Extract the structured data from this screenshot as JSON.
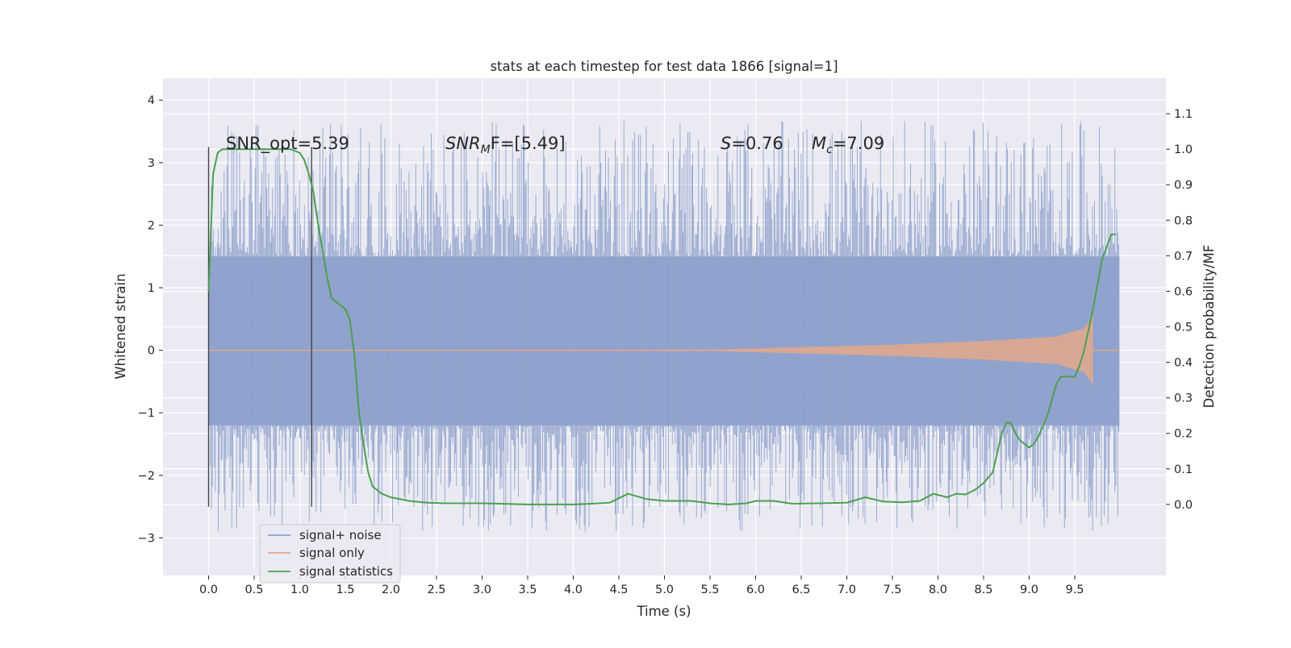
{
  "chart_data": {
    "type": "line",
    "title": "stats at each timestep for test data 1866 [signal=1]",
    "xlabel": "Time (s)",
    "ylabel_left": "Whitened strain",
    "ylabel_right": "Detection probability/MF",
    "xlim": [
      -0.5,
      10.5
    ],
    "ylim_left": [
      -3.6,
      4.35
    ],
    "ylim_right": [
      -0.2,
      1.2
    ],
    "xticks": [
      "0.0",
      "0.5",
      "1.0",
      "1.5",
      "2.0",
      "2.5",
      "3.0",
      "3.5",
      "4.0",
      "4.5",
      "5.0",
      "5.5",
      "6.0",
      "6.5",
      "7.0",
      "7.5",
      "8.0",
      "8.5",
      "9.0",
      "9.5"
    ],
    "yticks_left": [
      "−3",
      "−2",
      "−1",
      "0",
      "1",
      "2",
      "3",
      "4"
    ],
    "yticks_right": [
      "0.0",
      "0.1",
      "0.2",
      "0.3",
      "0.4",
      "0.5",
      "0.6",
      "0.7",
      "0.8",
      "0.9",
      "1.0",
      "1.1"
    ],
    "grid": true,
    "legend_position": "lower-left",
    "annotations": {
      "snr_opt": "SNR_opt=5.39",
      "snr_mf_base": "SNR",
      "snr_mf_sub": "M",
      "snr_mf_rest": "F=[5.49]",
      "s_var": "S",
      "s_val": "=0.76",
      "mc_var": "M",
      "mc_sub": "c",
      "mc_val": "=7.09"
    },
    "vlines": [
      0.0,
      1.13
    ],
    "series": [
      {
        "name": "signal+ noise",
        "color": "#8da0cb",
        "band": {
          "x_start": 0.0,
          "x_end": 9.99,
          "dense_lower": -1.2,
          "dense_upper": 1.5,
          "peak_max": 4.05,
          "trough_min": -3.2
        }
      },
      {
        "name": "signal only",
        "color": "#e2a88b",
        "chirp_amplitude": [
          [
            0,
            0
          ],
          [
            5.5,
            0.01
          ],
          [
            6.5,
            0.05
          ],
          [
            7.5,
            0.09
          ],
          [
            8.5,
            0.15
          ],
          [
            9.3,
            0.22
          ],
          [
            9.6,
            0.35
          ],
          [
            9.7,
            0.55
          ]
        ]
      },
      {
        "name": "signal statistics",
        "color": "#4c9f50",
        "x": [
          0,
          0.05,
          0.1,
          0.15,
          0.2,
          0.3,
          0.5,
          0.7,
          0.9,
          1.0,
          1.05,
          1.1,
          1.15,
          1.2,
          1.3,
          1.35,
          1.4,
          1.5,
          1.55,
          1.6,
          1.65,
          1.7,
          1.75,
          1.8,
          1.85,
          1.9,
          2.0,
          2.2,
          2.4,
          2.6,
          2.8,
          3.0,
          3.2,
          3.5,
          3.8,
          4.0,
          4.2,
          4.4,
          4.6,
          4.8,
          5.0,
          5.3,
          5.5,
          5.7,
          5.9,
          6.0,
          6.2,
          6.4,
          6.7,
          7.0,
          7.2,
          7.4,
          7.6,
          7.8,
          7.95,
          8.1,
          8.2,
          8.3,
          8.4,
          8.5,
          8.6,
          8.7,
          8.75,
          8.8,
          8.85,
          8.9,
          9.0,
          9.05,
          9.1,
          9.2,
          9.3,
          9.35,
          9.4,
          9.5,
          9.55,
          9.6,
          9.7,
          9.8,
          9.9,
          9.95
        ],
        "y": [
          0.6,
          0.93,
          0.99,
          1.0,
          1.0,
          1.0,
          1.0,
          1.0,
          1.0,
          0.99,
          0.97,
          0.93,
          0.88,
          0.79,
          0.64,
          0.58,
          0.57,
          0.55,
          0.52,
          0.42,
          0.26,
          0.17,
          0.09,
          0.05,
          0.04,
          0.03,
          0.02,
          0.01,
          0.005,
          0.003,
          0.003,
          0.003,
          0.002,
          0.0,
          0.0,
          0.0,
          0.002,
          0.005,
          0.03,
          0.015,
          0.01,
          0.01,
          0.003,
          0.0,
          0.003,
          0.01,
          0.01,
          0.002,
          0.003,
          0.005,
          0.02,
          0.008,
          0.006,
          0.01,
          0.03,
          0.02,
          0.03,
          0.028,
          0.04,
          0.06,
          0.09,
          0.2,
          0.23,
          0.23,
          0.2,
          0.18,
          0.16,
          0.17,
          0.19,
          0.25,
          0.34,
          0.36,
          0.36,
          0.36,
          0.39,
          0.43,
          0.55,
          0.69,
          0.76,
          0.76
        ]
      }
    ]
  }
}
